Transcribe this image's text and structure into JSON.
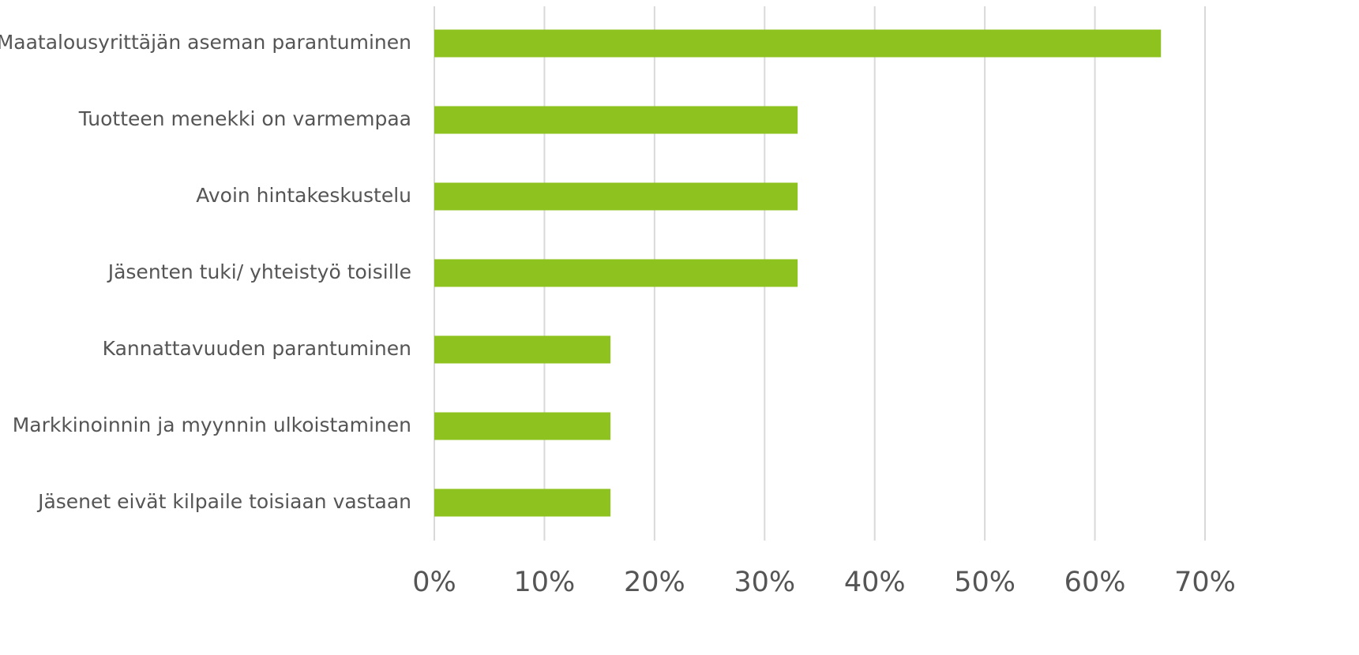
{
  "chart_data": {
    "type": "bar",
    "orientation": "horizontal",
    "title": "",
    "xlabel": "",
    "ylabel": "",
    "categories": [
      "Maatalousyrittäjän aseman parantuminen",
      "Tuotteen menekki on varmempaa",
      "Avoin hintakeskustelu",
      "Jäsenten tuki/ yhteistyö toisille",
      "Kannattavuuden parantuminen",
      "Markkinoinnin ja myynnin ulkoistaminen",
      "Jäsenet eivät kilpaile toisiaan vastaan"
    ],
    "values": [
      66,
      33,
      33,
      33,
      16,
      16,
      16
    ],
    "xlim": [
      0,
      70
    ],
    "x_ticks": [
      0,
      10,
      20,
      30,
      40,
      50,
      60,
      70
    ],
    "x_tick_labels": [
      "0%",
      "10%",
      "20%",
      "30%",
      "40%",
      "50%",
      "60%",
      "70%"
    ],
    "value_format": "percent",
    "grid": "vertical",
    "legend": "none",
    "bar_color": "#8dc21f",
    "grid_color": "#d9d9d9",
    "label_color": "#555555"
  }
}
